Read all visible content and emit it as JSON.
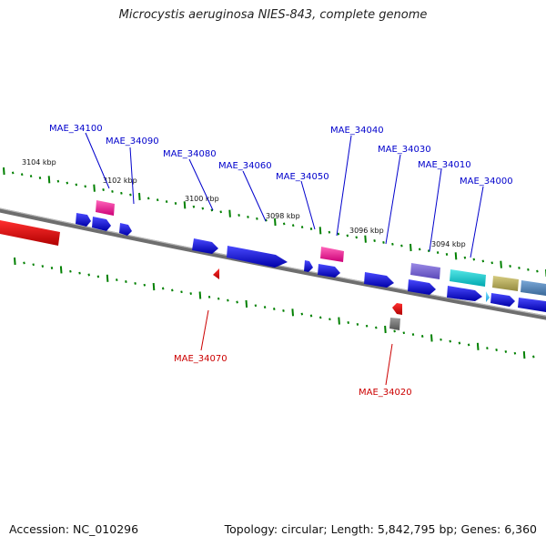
{
  "title": "Microcystis aeruginosa NIES-843, complete genome",
  "footer": {
    "accession": "Accession: NC_010296",
    "topology": "Topology: circular; Length: 5,842,795 bp; Genes: 6,360"
  },
  "colors": {
    "forward_label": "#0000cc",
    "reverse_label": "#cc0000",
    "backbone": "#808080",
    "tick": "#008000"
  },
  "ticks": [
    {
      "label": "3104 kbp"
    },
    {
      "label": "3102 kbp"
    },
    {
      "label": "3100 kbp"
    },
    {
      "label": "3098 kbp"
    },
    {
      "label": "3096 kbp"
    },
    {
      "label": "3094 kbp"
    }
  ],
  "forward_labels": [
    "MAE_34100",
    "MAE_34090",
    "MAE_34080",
    "MAE_34060",
    "MAE_34050",
    "MAE_34040",
    "MAE_34030",
    "MAE_34010",
    "MAE_34000"
  ],
  "reverse_labels": [
    "MAE_34070",
    "MAE_34020"
  ]
}
